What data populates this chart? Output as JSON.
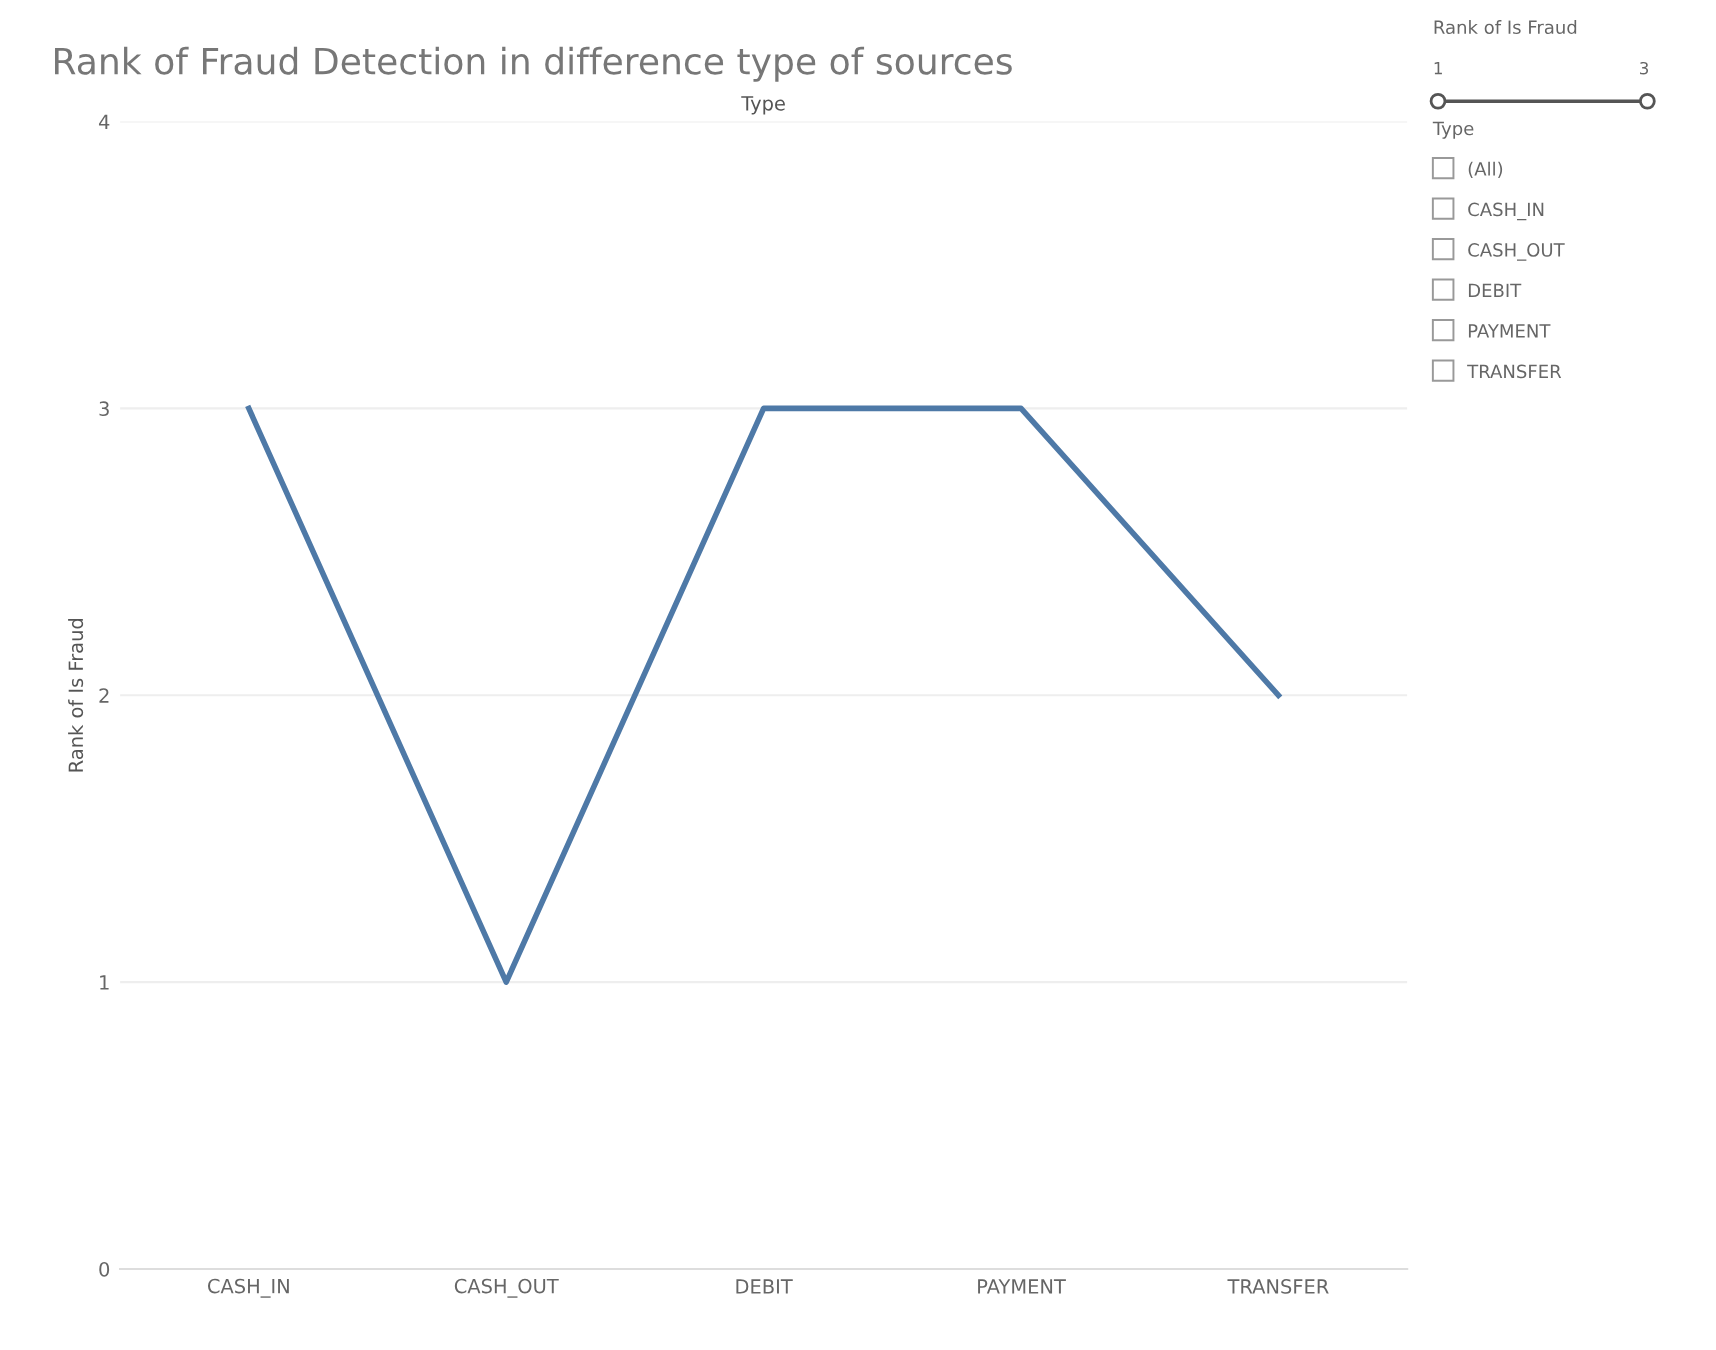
{
  "chart_data": {
    "type": "line",
    "title": "Rank of Fraud Detection in difference type of sources",
    "xlabel": "Type",
    "ylabel": "Rank of Is Fraud",
    "categories": [
      "CASH_IN",
      "CASH_OUT",
      "DEBIT",
      "PAYMENT",
      "TRANSFER"
    ],
    "series": [
      {
        "color": "#4e79a7",
        "values": [
          3,
          1,
          3,
          3,
          2
        ]
      }
    ],
    "ylim": [
      0,
      4
    ],
    "yticks": [
      0,
      1,
      2,
      3,
      4
    ],
    "grid": "y",
    "marker": "none",
    "line_style": "solid",
    "annotations": [
      "Rank of Is Fraud",
      "1",
      "3",
      "Type",
      "(All)",
      "CASH_IN",
      "CASH_OUT",
      "DEBIT",
      "PAYMENT",
      "TRANSFER"
    ]
  }
}
